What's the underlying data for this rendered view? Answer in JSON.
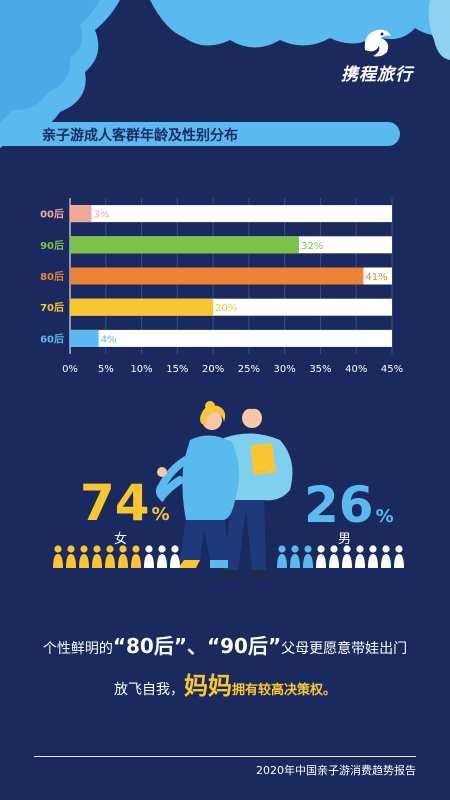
{
  "brand": {
    "name": "携程旅行",
    "logo_icon": "dolphin-icon"
  },
  "colors": {
    "background": "#1a2a5e",
    "accent_blue": "#5ab9ef",
    "yellow": "#f9c531",
    "cloud": "#5ab9ef"
  },
  "chart_data": {
    "type": "bar",
    "orientation": "horizontal",
    "title": "亲子游成人客群年龄及性别分布",
    "categories": [
      "00后",
      "90后",
      "80后",
      "70后",
      "60后"
    ],
    "values": [
      3,
      32,
      41,
      20,
      4
    ],
    "value_labels": [
      "3%",
      "32%",
      "41%",
      "20%",
      "4%"
    ],
    "colors": [
      "#f1a898",
      "#7dc24a",
      "#ec8336",
      "#f9c531",
      "#5ab9ef"
    ],
    "xlim": [
      0,
      45
    ],
    "xticks": [
      "0%",
      "5%",
      "10%",
      "15%",
      "20%",
      "25%",
      "30%",
      "35%",
      "40%",
      "45%"
    ],
    "grid": true,
    "legend": "none"
  },
  "gender": {
    "female": {
      "percent": "74",
      "symbol": "%",
      "label": "女",
      "ratio": 0.74
    },
    "male": {
      "percent": "26",
      "symbol": "%",
      "label": "男",
      "ratio": 0.26
    }
  },
  "caption": {
    "line1_pre": "个性鲜明的",
    "q80": "“80后”",
    "sep": "、",
    "q90": "“90后”",
    "line1_post": "父母更愿意带娃出门",
    "line2_pre": "放飞自我，",
    "moms": "妈妈",
    "line2_post": "拥有较高决策权。"
  },
  "footer": "2020年中国亲子游消费趋势报告"
}
